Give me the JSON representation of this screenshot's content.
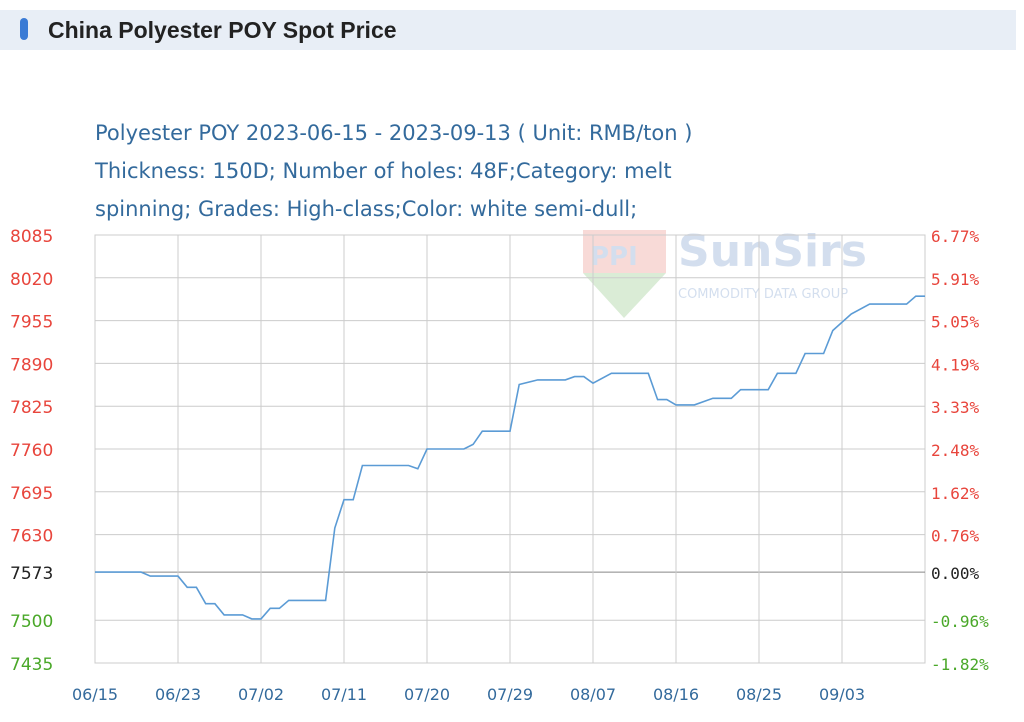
{
  "page": {
    "title": "China Polyester POY Spot Price"
  },
  "chart_header": {
    "line1": "Polyester POY 2023-06-15 - 2023-09-13    ( Unit: RMB/ton )",
    "line2": "Thickness: 150D; Number of holes: 48F;Category: melt",
    "line3": "spinning; Grades: High-class;Color: white semi-dull;"
  },
  "watermark": {
    "brand": "SunSirs",
    "tagline": "COMMODITY DATA GROUP"
  },
  "colors": {
    "line": "#5b9bd5",
    "up_axis": "#e8453c",
    "down_axis": "#4aa829",
    "base_axis": "#222222",
    "header_text": "#336a9c",
    "grid": "#cccccc",
    "title_bar_bg": "#e8eef6",
    "title_marker": "#3a7bd5"
  },
  "chart_data": {
    "type": "line",
    "xlabel": "",
    "ylabel": "",
    "ylim": [
      7435,
      8085
    ],
    "base_value": 7573,
    "yticks": [
      8085,
      8020,
      7955,
      7890,
      7825,
      7760,
      7695,
      7630,
      7573,
      7500,
      7435
    ],
    "pct_ticks": [
      "6.77%",
      "5.91%",
      "5.05%",
      "4.19%",
      "3.33%",
      "2.48%",
      "1.62%",
      "0.76%",
      "0.00%",
      "-0.96%",
      "-1.82%"
    ],
    "xticks": [
      "06/15",
      "06/23",
      "07/02",
      "07/11",
      "07/20",
      "07/29",
      "08/07",
      "08/16",
      "08/25",
      "09/03"
    ],
    "xrange": [
      "2023-06-15",
      "2023-09-13"
    ],
    "series": [
      {
        "points": [
          [
            "2023-06-15",
            7573
          ],
          [
            "2023-06-20",
            7573
          ],
          [
            "2023-06-21",
            7567
          ],
          [
            "2023-06-24",
            7567
          ],
          [
            "2023-06-25",
            7550
          ],
          [
            "2023-06-26",
            7550
          ],
          [
            "2023-06-27",
            7525
          ],
          [
            "2023-06-28",
            7525
          ],
          [
            "2023-06-29",
            7508
          ],
          [
            "2023-07-01",
            7508
          ],
          [
            "2023-07-02",
            7502
          ],
          [
            "2023-07-03",
            7502
          ],
          [
            "2023-07-04",
            7518
          ],
          [
            "2023-07-05",
            7518
          ],
          [
            "2023-07-06",
            7530
          ],
          [
            "2023-07-09",
            7530
          ],
          [
            "2023-07-10",
            7530
          ],
          [
            "2023-07-11",
            7640
          ],
          [
            "2023-07-12",
            7683
          ],
          [
            "2023-07-13",
            7683
          ],
          [
            "2023-07-14",
            7735
          ],
          [
            "2023-07-19",
            7735
          ],
          [
            "2023-07-20",
            7730
          ],
          [
            "2023-07-21",
            7760
          ],
          [
            "2023-07-25",
            7760
          ],
          [
            "2023-07-26",
            7767
          ],
          [
            "2023-07-27",
            7787
          ],
          [
            "2023-07-30",
            7787
          ],
          [
            "2023-07-31",
            7858
          ],
          [
            "2023-08-02",
            7865
          ],
          [
            "2023-08-05",
            7865
          ],
          [
            "2023-08-06",
            7870
          ],
          [
            "2023-08-07",
            7870
          ],
          [
            "2023-08-08",
            7860
          ],
          [
            "2023-08-10",
            7875
          ],
          [
            "2023-08-14",
            7875
          ],
          [
            "2023-08-15",
            7835
          ],
          [
            "2023-08-16",
            7835
          ],
          [
            "2023-08-17",
            7827
          ],
          [
            "2023-08-19",
            7827
          ],
          [
            "2023-08-21",
            7837
          ],
          [
            "2023-08-23",
            7837
          ],
          [
            "2023-08-24",
            7850
          ],
          [
            "2023-08-27",
            7850
          ],
          [
            "2023-08-28",
            7875
          ],
          [
            "2023-08-30",
            7875
          ],
          [
            "2023-08-31",
            7905
          ],
          [
            "2023-09-02",
            7905
          ],
          [
            "2023-09-03",
            7940
          ],
          [
            "2023-09-05",
            7965
          ],
          [
            "2023-09-07",
            7980
          ],
          [
            "2023-09-11",
            7980
          ],
          [
            "2023-09-12",
            7992
          ],
          [
            "2023-09-13",
            7992
          ]
        ]
      }
    ]
  }
}
